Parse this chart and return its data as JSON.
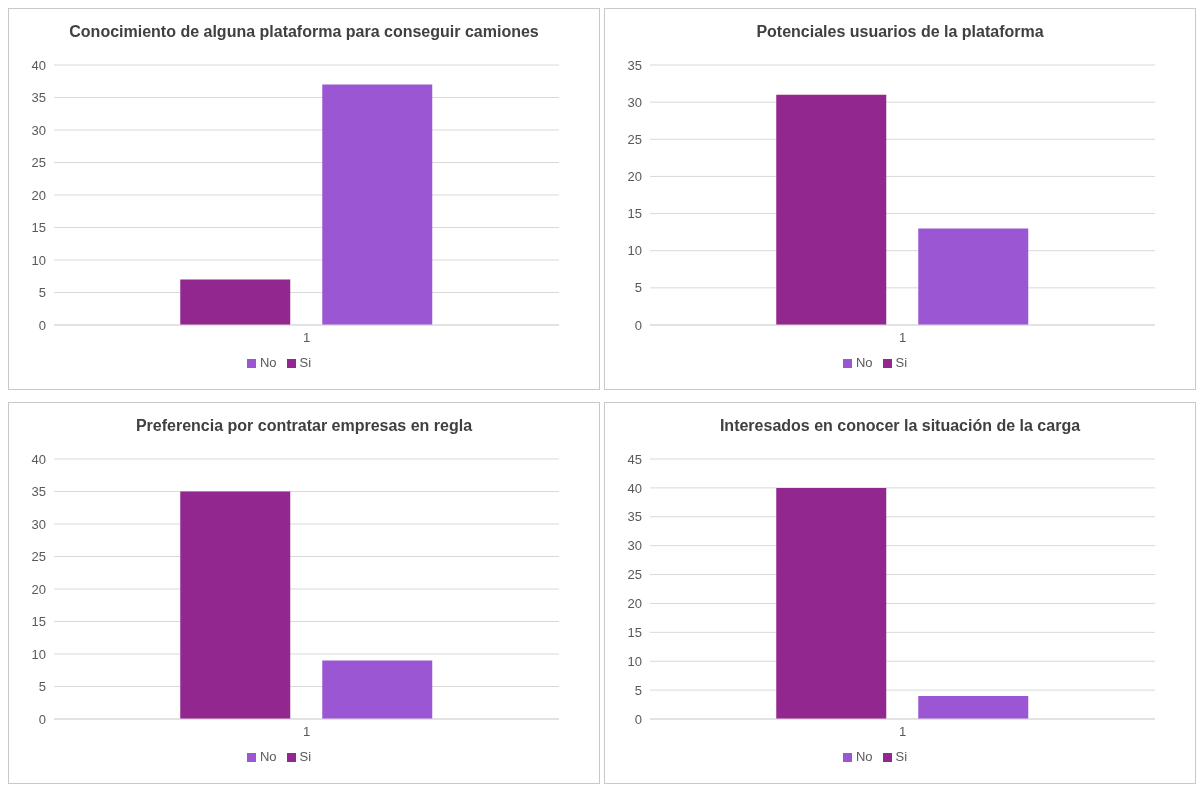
{
  "chart_data": [
    {
      "type": "bar",
      "title": "Conocimiento de alguna plataforma para conseguir camiones",
      "categories": [
        "1"
      ],
      "series": [
        {
          "name": "Si",
          "color": "#92278f",
          "values": [
            7
          ]
        },
        {
          "name": "No",
          "color": "#9b57d3",
          "values": [
            37
          ]
        }
      ],
      "ylim": [
        0,
        40
      ],
      "yticks": [
        0,
        5,
        10,
        15,
        20,
        25,
        30,
        35,
        40
      ],
      "grid": "y",
      "legend": "bottom"
    },
    {
      "type": "bar",
      "title": "Potenciales usuarios de la plataforma",
      "categories": [
        "1"
      ],
      "series": [
        {
          "name": "Si",
          "color": "#92278f",
          "values": [
            31
          ]
        },
        {
          "name": "No",
          "color": "#9b57d3",
          "values": [
            13
          ]
        }
      ],
      "ylim": [
        0,
        35
      ],
      "yticks": [
        0,
        5,
        10,
        15,
        20,
        25,
        30,
        35
      ],
      "grid": "y",
      "legend": "bottom"
    },
    {
      "type": "bar",
      "title": "Preferencia por contratar empresas en regla",
      "categories": [
        "1"
      ],
      "series": [
        {
          "name": "Si",
          "color": "#92278f",
          "values": [
            35
          ]
        },
        {
          "name": "No",
          "color": "#9b57d3",
          "values": [
            9
          ]
        }
      ],
      "ylim": [
        0,
        40
      ],
      "yticks": [
        0,
        5,
        10,
        15,
        20,
        25,
        30,
        35,
        40
      ],
      "grid": "y",
      "legend": "bottom"
    },
    {
      "type": "bar",
      "title": "Interesados en conocer la situación de la carga",
      "categories": [
        "1"
      ],
      "series": [
        {
          "name": "Si",
          "color": "#92278f",
          "values": [
            40
          ]
        },
        {
          "name": "No",
          "color": "#9b57d3",
          "values": [
            4
          ]
        }
      ],
      "ylim": [
        0,
        45
      ],
      "yticks": [
        0,
        5,
        10,
        15,
        20,
        25,
        30,
        35,
        40,
        45
      ],
      "grid": "y",
      "legend": "bottom"
    }
  ]
}
